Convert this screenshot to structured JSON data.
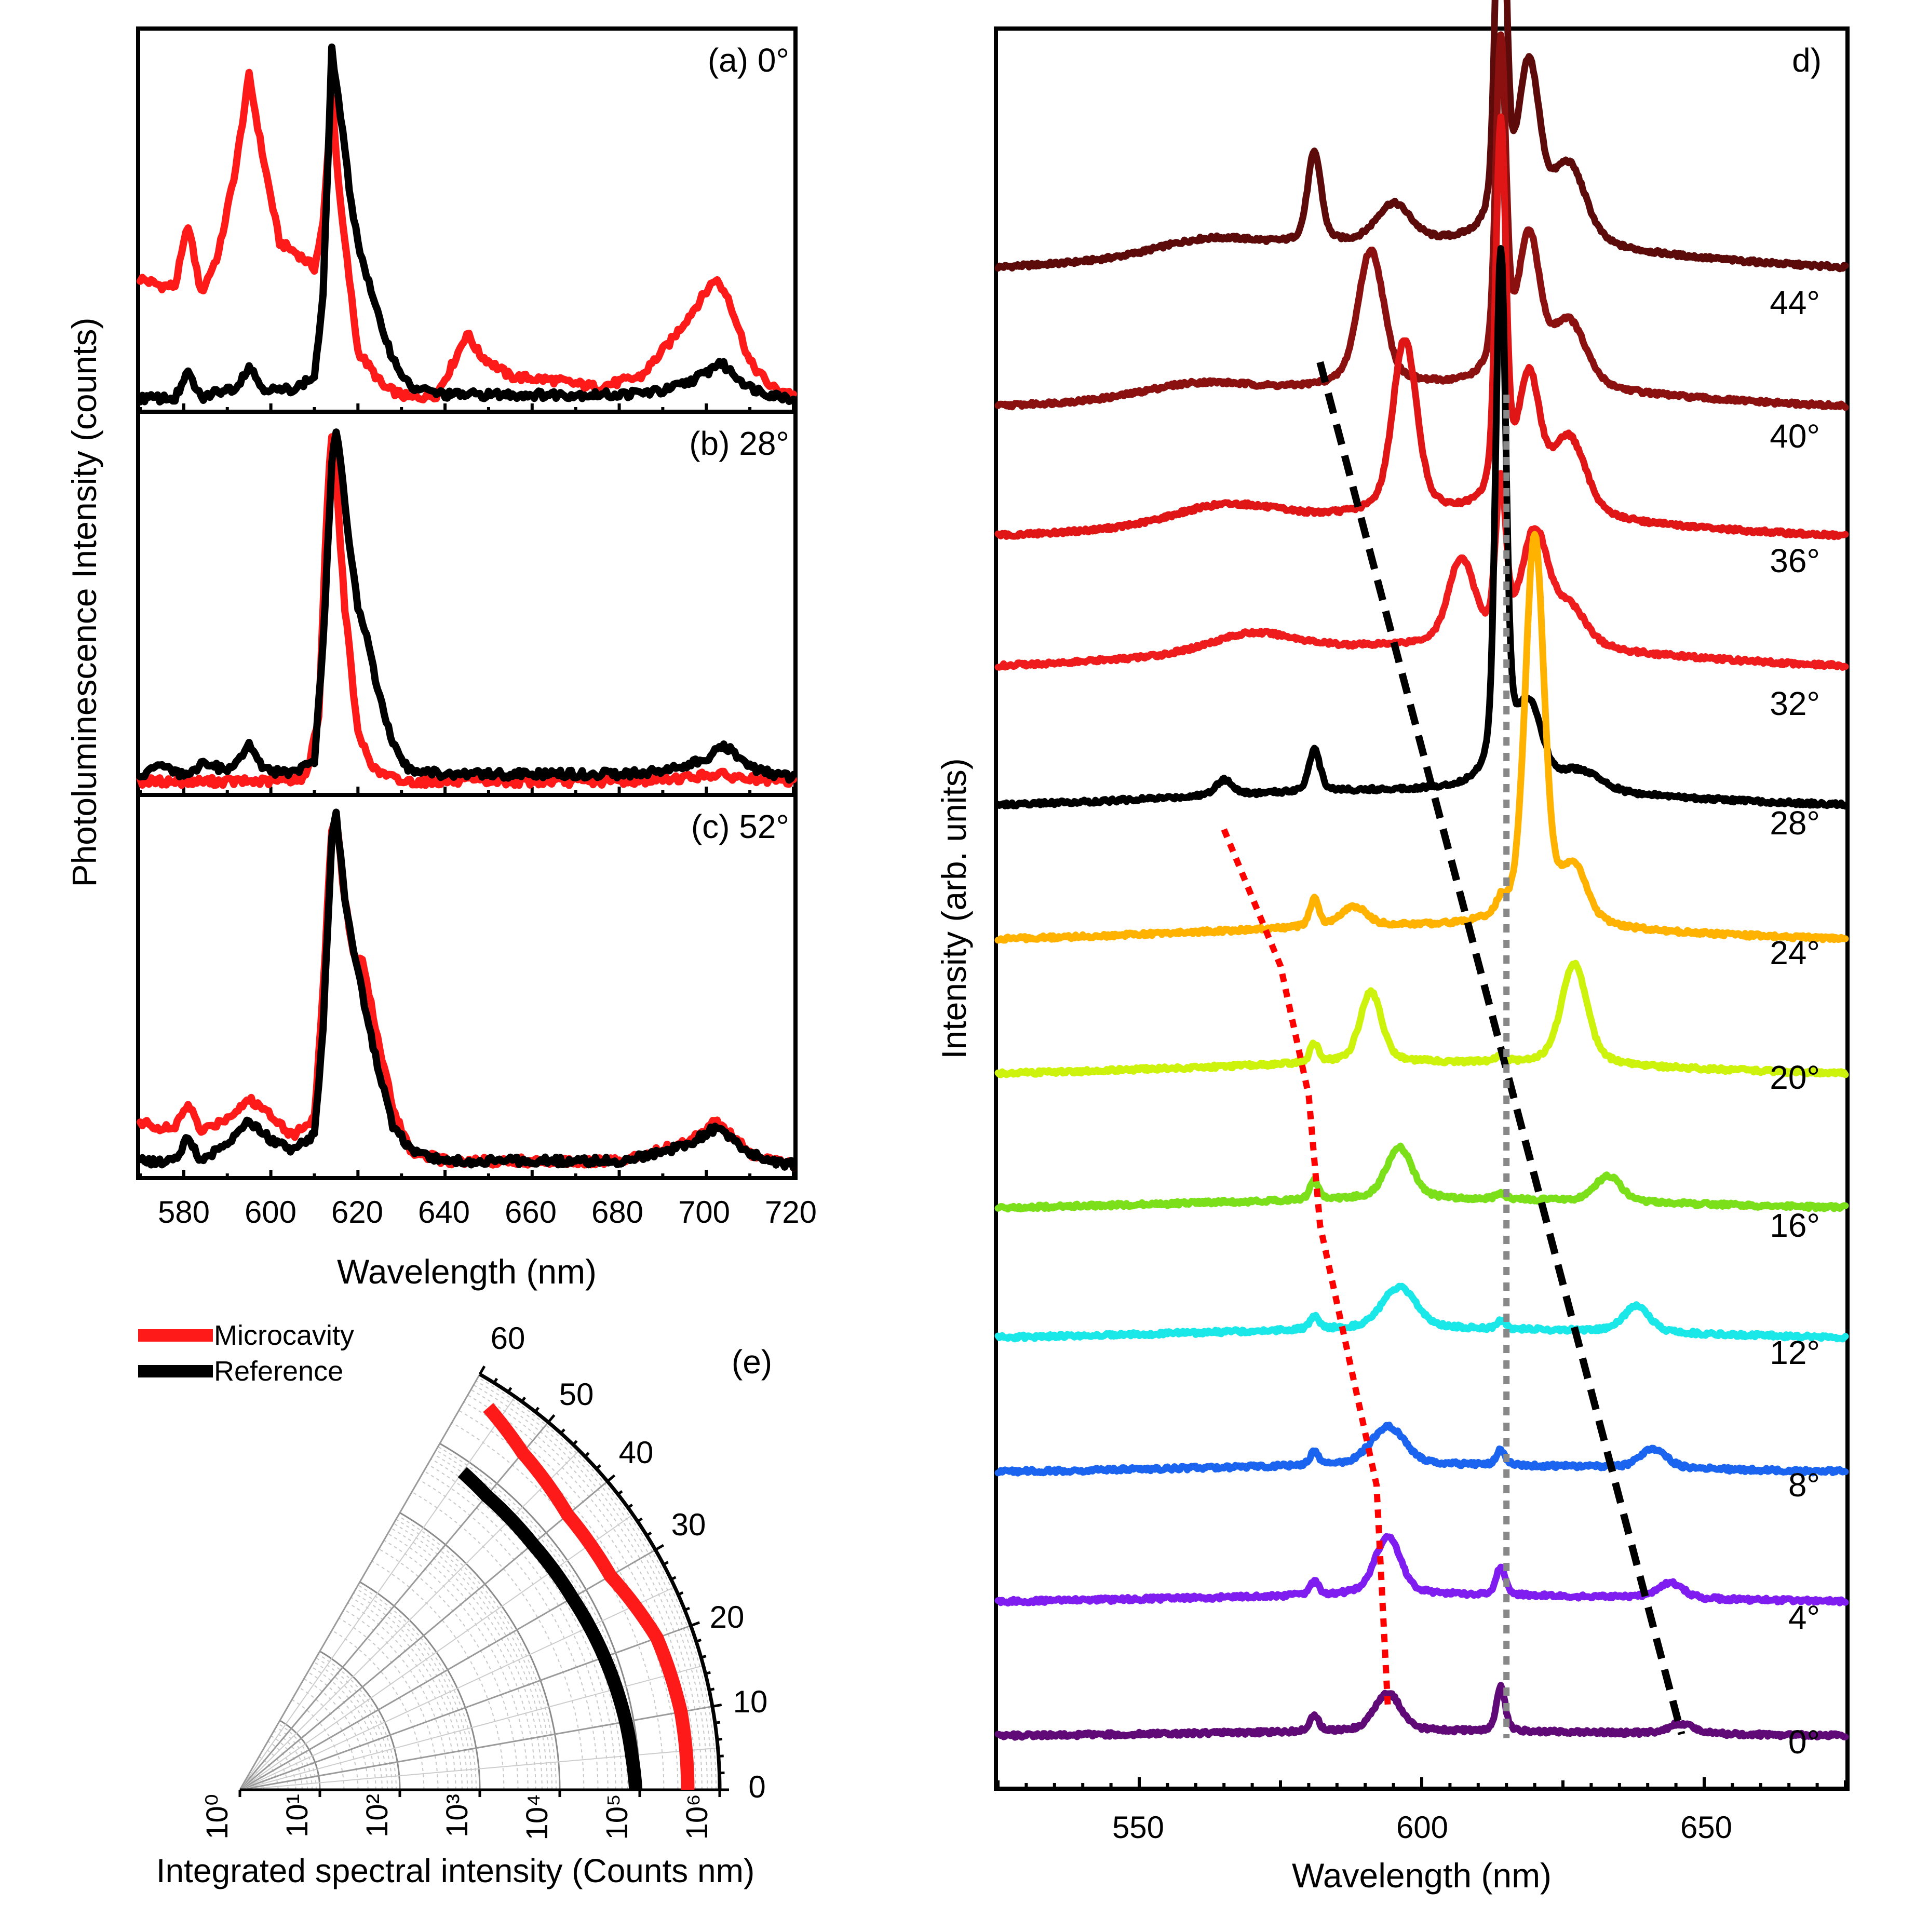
{
  "panel_labels": {
    "a": "(a) 0°",
    "b": "(b) 28°",
    "c": "(c) 52°",
    "d": "d)",
    "e": "(e)"
  },
  "left_axes": {
    "ylabel": "Photoluminescence Intensity (counts)",
    "xlabel": "Wavelength (nm)",
    "xticks": [
      "580",
      "600",
      "620",
      "640",
      "660",
      "680",
      "700",
      "720"
    ]
  },
  "legend": {
    "microcavity": "Microcavity",
    "reference": "Reference"
  },
  "polar": {
    "xlabel": "Integrated spectral intensity (Counts nm)",
    "angle_ticks": [
      "0",
      "10",
      "20",
      "30",
      "40",
      "50",
      "60"
    ],
    "radial_ticks": [
      "10⁰",
      "10¹",
      "10²",
      "10³",
      "10⁴",
      "10⁵",
      "10⁶"
    ]
  },
  "right_axes": {
    "ylabel": "Intensity (arb. units)",
    "xlabel": "Wavelength (nm)",
    "xticks": [
      "550",
      "600",
      "650"
    ],
    "angle_labels": [
      "44°",
      "40°",
      "36°",
      "32°",
      "28°",
      "24°",
      "20°",
      "16°",
      "12°",
      "8°",
      "4°",
      "0°"
    ]
  },
  "colors": {
    "microcavity": "#ff1a1a",
    "reference": "#000000",
    "angles": [
      "#5c0a0a",
      "#8b1010",
      "#e01515",
      "#ee1c1c",
      "#000000",
      "#ffb300",
      "#cdf20b",
      "#7be01a",
      "#1ae8e8",
      "#1a64f0",
      "#7f1df0",
      "#600a78"
    ]
  },
  "chart_data": [
    {
      "type": "line",
      "title": "(a) 0°",
      "xlabel": "Wavelength (nm)",
      "ylabel": "Photoluminescence Intensity (counts)",
      "xlim": [
        570,
        720
      ],
      "series": [
        {
          "name": "Microcavity",
          "x": [
            570,
            575,
            578,
            581,
            584,
            588,
            592,
            595,
            598,
            602,
            606,
            610,
            612,
            614,
            616,
            620,
            626,
            632,
            638,
            642,
            645,
            648,
            655,
            665,
            675,
            685,
            692,
            698,
            702,
            705,
            710,
            715,
            720
          ],
          "y": [
            0.35,
            0.33,
            0.33,
            0.5,
            0.31,
            0.42,
            0.66,
            0.91,
            0.7,
            0.45,
            0.42,
            0.38,
            0.5,
            0.85,
            0.55,
            0.15,
            0.05,
            0.02,
            0.03,
            0.12,
            0.2,
            0.14,
            0.08,
            0.07,
            0.05,
            0.08,
            0.18,
            0.28,
            0.35,
            0.3,
            0.12,
            0.05,
            0.03
          ]
        },
        {
          "name": "Reference",
          "x": [
            570,
            575,
            578,
            581,
            584,
            588,
            592,
            595,
            598,
            602,
            606,
            610,
            612,
            614,
            616,
            618,
            620,
            624,
            628,
            632,
            640,
            650,
            660,
            670,
            680,
            690,
            695,
            700,
            703,
            706,
            710,
            715,
            720
          ],
          "y": [
            0.02,
            0.02,
            0.02,
            0.09,
            0.02,
            0.04,
            0.05,
            0.11,
            0.05,
            0.04,
            0.05,
            0.08,
            0.3,
            0.98,
            0.8,
            0.6,
            0.45,
            0.27,
            0.13,
            0.05,
            0.03,
            0.03,
            0.03,
            0.03,
            0.03,
            0.04,
            0.06,
            0.09,
            0.12,
            0.09,
            0.05,
            0.03,
            0.02
          ]
        }
      ]
    },
    {
      "type": "line",
      "title": "(b) 28°",
      "xlabel": "Wavelength (nm)",
      "xlim": [
        570,
        720
      ],
      "series": [
        {
          "name": "Microcavity",
          "x": [
            570,
            580,
            590,
            600,
            608,
            611,
            613,
            614,
            615,
            617,
            620,
            624,
            630,
            640,
            660,
            680,
            695,
            702,
            708,
            715,
            720
          ],
          "y": [
            0.02,
            0.02,
            0.02,
            0.02,
            0.03,
            0.2,
            0.8,
            0.98,
            0.85,
            0.5,
            0.15,
            0.05,
            0.02,
            0.02,
            0.02,
            0.02,
            0.03,
            0.04,
            0.03,
            0.02,
            0.02
          ]
        },
        {
          "name": "Reference",
          "x": [
            570,
            575,
            580,
            585,
            590,
            595,
            598,
            600,
            605,
            610,
            612,
            614,
            615,
            616,
            618,
            620,
            622,
            624,
            628,
            632,
            640,
            650,
            660,
            670,
            680,
            690,
            700,
            704,
            708,
            712,
            716,
            720
          ],
          "y": [
            0.04,
            0.06,
            0.04,
            0.07,
            0.05,
            0.12,
            0.06,
            0.05,
            0.04,
            0.08,
            0.4,
            0.9,
            0.99,
            0.9,
            0.68,
            0.5,
            0.42,
            0.3,
            0.12,
            0.05,
            0.04,
            0.04,
            0.04,
            0.04,
            0.04,
            0.05,
            0.08,
            0.12,
            0.08,
            0.05,
            0.04,
            0.03
          ]
        }
      ]
    },
    {
      "type": "line",
      "title": "(c) 52°",
      "xlabel": "Wavelength (nm)",
      "xlim": [
        570,
        720
      ],
      "series": [
        {
          "name": "Microcavity",
          "x": [
            570,
            575,
            578,
            581,
            584,
            590,
            595,
            600,
            605,
            610,
            612,
            614,
            615,
            617,
            619,
            621,
            624,
            628,
            632,
            640,
            660,
            680,
            695,
            702,
            705,
            710,
            715,
            720
          ],
          "y": [
            0.14,
            0.12,
            0.12,
            0.19,
            0.11,
            0.15,
            0.2,
            0.16,
            0.1,
            0.15,
            0.5,
            0.95,
            0.98,
            0.75,
            0.6,
            0.58,
            0.4,
            0.18,
            0.06,
            0.03,
            0.03,
            0.03,
            0.08,
            0.14,
            0.11,
            0.05,
            0.03,
            0.02
          ]
        },
        {
          "name": "Reference",
          "x": [
            570,
            575,
            578,
            581,
            584,
            590,
            595,
            600,
            605,
            610,
            612,
            614,
            615,
            617,
            620,
            624,
            628,
            632,
            640,
            660,
            680,
            695,
            702,
            705,
            710,
            715,
            720
          ],
          "y": [
            0.03,
            0.03,
            0.03,
            0.1,
            0.03,
            0.08,
            0.14,
            0.09,
            0.06,
            0.1,
            0.4,
            0.92,
            0.99,
            0.75,
            0.55,
            0.32,
            0.13,
            0.06,
            0.03,
            0.03,
            0.03,
            0.07,
            0.12,
            0.1,
            0.05,
            0.03,
            0.02
          ]
        }
      ]
    },
    {
      "type": "line",
      "title": "d)",
      "xlabel": "Wavelength (nm)",
      "ylabel": "Intensity (arb. units)",
      "xlim": [
        525,
        675
      ],
      "series_model": "pseudo-Voigt peaks: [center nm, amplitude in offset-units, width nm]",
      "series": [
        {
          "name": "44°",
          "baseline": 0.55,
          "peaks": [
            [
              581,
              0.7,
              1.6
            ],
            [
              595,
              0.3,
              4
            ],
            [
              614,
              3.25,
              1.2
            ],
            [
              619,
              1.3,
              2.5
            ],
            [
              626,
              0.6,
              4
            ],
            [
              562,
              0.12,
              12
            ]
          ]
        },
        {
          "name": "40°",
          "baseline": 0.45,
          "peaks": [
            [
              591,
              1.05,
              3
            ],
            [
              614,
              2.6,
              1.2
            ],
            [
              619,
              1.1,
              2.5
            ],
            [
              626,
              0.5,
              4
            ],
            [
              560,
              0.1,
              12
            ]
          ]
        },
        {
          "name": "36°",
          "baseline": 0.45,
          "peaks": [
            [
              597,
              1.35,
              2.8
            ],
            [
              614,
              2.95,
              1.2
            ],
            [
              619,
              1.0,
              2.5
            ],
            [
              626,
              0.6,
              4
            ],
            [
              565,
              0.15,
              12
            ]
          ]
        },
        {
          "name": "32°",
          "baseline": 0.45,
          "peaks": [
            [
              607,
              0.65,
              3
            ],
            [
              614,
              1.2,
              1.2
            ],
            [
              620,
              0.85,
              3
            ],
            [
              626,
              0.3,
              4
            ],
            [
              570,
              0.15,
              10
            ]
          ]
        },
        {
          "name": "28°",
          "baseline": 0.35,
          "peaks": [
            [
              565,
              0.12,
              2
            ],
            [
              581,
              0.32,
              1.3
            ],
            [
              614,
              4.1,
              1.2
            ],
            [
              619,
              0.6,
              3
            ],
            [
              628,
              0.15,
              5
            ]
          ]
        },
        {
          "name": "24°",
          "baseline": 0.3,
          "peaks": [
            [
              581,
              0.22,
              1
            ],
            [
              588,
              0.15,
              3
            ],
            [
              614,
              0.1,
              1
            ],
            [
              620,
              3.0,
              2.2
            ],
            [
              627,
              0.4,
              3
            ]
          ]
        },
        {
          "name": "20°",
          "baseline": 0.25,
          "peaks": [
            [
              581,
              0.15,
              1
            ],
            [
              591,
              0.55,
              2.5
            ],
            [
              614,
              0.05,
              1
            ],
            [
              627,
              0.78,
              3
            ]
          ]
        },
        {
          "name": "16°",
          "baseline": 0.2,
          "peaks": [
            [
              581,
              0.15,
              1
            ],
            [
              596,
              0.4,
              3
            ],
            [
              614,
              0.05,
              1
            ],
            [
              633,
              0.2,
              3
            ]
          ]
        },
        {
          "name": "12°",
          "baseline": 0.2,
          "peaks": [
            [
              581,
              0.1,
              1
            ],
            [
              596,
              0.32,
              4
            ],
            [
              614,
              0.06,
              1
            ],
            [
              638,
              0.2,
              3
            ]
          ]
        },
        {
          "name": "8°",
          "baseline": 0.15,
          "peaks": [
            [
              581,
              0.1,
              1
            ],
            [
              594,
              0.3,
              4
            ],
            [
              614,
              0.12,
              1
            ],
            [
              641,
              0.15,
              3
            ]
          ]
        },
        {
          "name": "4°",
          "baseline": 0.15,
          "peaks": [
            [
              581,
              0.1,
              1
            ],
            [
              594,
              0.45,
              3
            ],
            [
              614,
              0.22,
              1
            ],
            [
              644,
              0.12,
              3
            ]
          ]
        },
        {
          "name": "0°",
          "baseline": 0.1,
          "peaks": [
            [
              581,
              0.12,
              1
            ],
            [
              594,
              0.3,
              3
            ],
            [
              614,
              0.35,
              1
            ],
            [
              646,
              0.08,
              3
            ]
          ]
        }
      ],
      "guide_lines": [
        {
          "style": "dashed",
          "color": "#000000",
          "points": [
            [
              582,
              10.65
            ],
            [
              646,
              0.08
            ]
          ]
        },
        {
          "style": "dotted",
          "color": "#888888",
          "points": [
            [
              615,
              10.4
            ],
            [
              615,
              0.05
            ]
          ]
        },
        {
          "style": "dotted",
          "color": "#ff0000",
          "points": [
            [
              565,
              7.05
            ],
            [
              575,
              6.0
            ],
            [
              580,
              5.0
            ],
            [
              582,
              4.0
            ],
            [
              587,
              3.0
            ],
            [
              592,
              2.0
            ],
            [
              594,
              0.3
            ]
          ]
        }
      ],
      "angles": [
        "0°",
        "4°",
        "8°",
        "12°",
        "16°",
        "20°",
        "24°",
        "28°",
        "32°",
        "36°",
        "40°",
        "44°"
      ]
    },
    {
      "type": "polar",
      "title": "(e)",
      "xlabel": "Integrated spectral intensity (Counts nm)",
      "theta_range_deg": [
        0,
        60
      ],
      "radial_log_range": [
        0,
        6
      ],
      "series": [
        {
          "name": "Microcavity",
          "theta": [
            0,
            10,
            20,
            25,
            30,
            40,
            50,
            57
          ],
          "log10_r": [
            5.6,
            5.6,
            5.55,
            5.45,
            5.35,
            5.35,
            5.5,
            5.7
          ]
        },
        {
          "name": "Reference",
          "theta": [
            0,
            5,
            10,
            20,
            30,
            40,
            50,
            55
          ],
          "log10_r": [
            4.95,
            4.92,
            4.9,
            4.85,
            4.8,
            4.78,
            4.8,
            4.85
          ]
        }
      ]
    }
  ]
}
